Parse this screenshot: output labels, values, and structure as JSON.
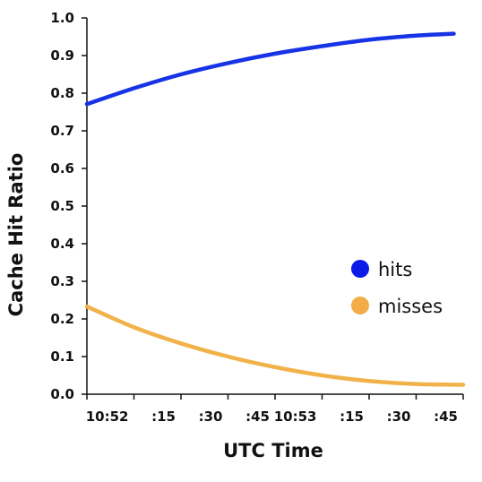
{
  "chart_data": {
    "type": "line",
    "title": "",
    "xlabel": "UTC Time",
    "ylabel": "Cache Hit Ratio",
    "ylim": [
      0,
      1
    ],
    "xlim": [
      0,
      8
    ],
    "y_ticks": [
      0.0,
      0.1,
      0.2,
      0.3,
      0.4,
      0.5,
      0.6,
      0.7,
      0.8,
      0.9,
      1.0
    ],
    "y_tick_labels": [
      "0.0",
      "0.1",
      "0.2",
      "0.3",
      "0.4",
      "0.5",
      "0.6",
      "0.7",
      "0.8",
      "0.9",
      "1.0"
    ],
    "x_tick_labels": [
      "10:52",
      ":15",
      ":30",
      ":45",
      "10:53",
      ":15",
      ":30",
      ":45"
    ],
    "grid": false,
    "legend_position": "right-middle",
    "series": [
      {
        "name": "hits",
        "color": "#1733e6",
        "x": [
          0.0,
          1.0,
          2.0,
          3.0,
          4.0,
          5.0,
          6.0,
          7.0,
          7.8
        ],
        "y": [
          0.771,
          0.813,
          0.85,
          0.88,
          0.905,
          0.925,
          0.942,
          0.953,
          0.958
        ]
      },
      {
        "name": "misses",
        "color": "#f2b24a",
        "x": [
          0.0,
          1.0,
          2.0,
          3.0,
          4.0,
          5.0,
          6.0,
          7.0,
          8.0
        ],
        "y": [
          0.233,
          0.178,
          0.135,
          0.1,
          0.072,
          0.05,
          0.035,
          0.027,
          0.025
        ]
      }
    ],
    "legend_markers": [
      {
        "name": "hits",
        "color": "#0c1be8"
      },
      {
        "name": "misses",
        "color": "#f4ad46"
      }
    ]
  }
}
